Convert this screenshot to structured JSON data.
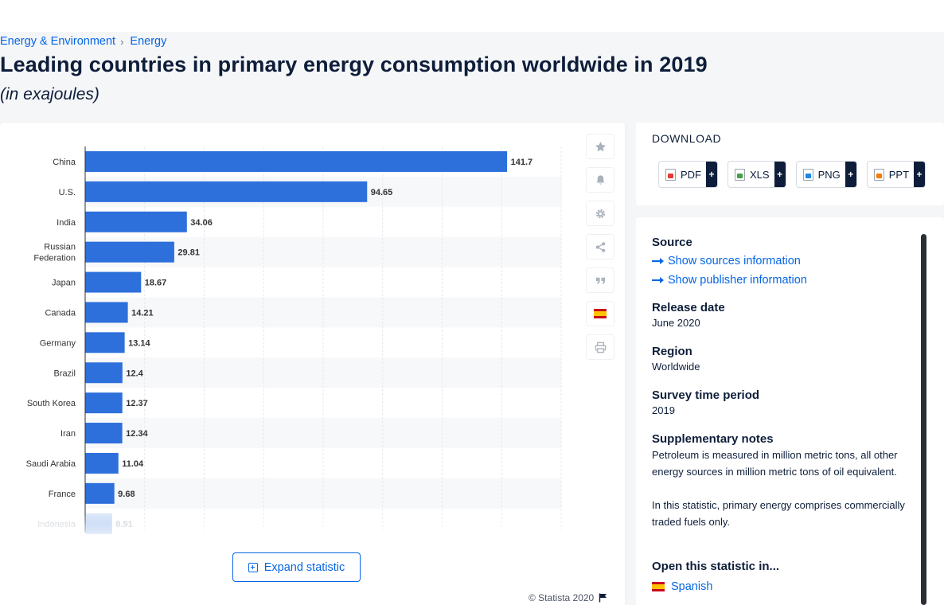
{
  "breadcrumb": {
    "level1": "Energy & Environment",
    "separator": "›",
    "level2": "Energy"
  },
  "page": {
    "title": "Leading countries in primary energy consumption worldwide in 2019",
    "subtitle": "(in exajoules)"
  },
  "chart_data": {
    "type": "bar",
    "orientation": "horizontal",
    "categories": [
      "China",
      "U.S.",
      "India",
      "Russian Federation",
      "Japan",
      "Canada",
      "Germany",
      "Brazil",
      "South Korea",
      "Iran",
      "Saudi Arabia",
      "France",
      "Indonesia"
    ],
    "values": [
      141.7,
      94.65,
      34.06,
      29.81,
      18.67,
      14.21,
      13.14,
      12.4,
      12.37,
      12.34,
      11.04,
      9.68,
      8.91
    ],
    "value_labels": [
      "141.7",
      "94.65",
      "34.06",
      "29.81",
      "18.67",
      "14.21",
      "13.14",
      "12.4",
      "12.37",
      "12.34",
      "11.04",
      "9.68",
      "8.91"
    ],
    "xlim": [
      0,
      160
    ],
    "grid": true,
    "bar_color": "#2d6fdb"
  },
  "tools": {
    "items": [
      {
        "name": "star-icon",
        "label": "Favorite"
      },
      {
        "name": "bell-icon",
        "label": "Notification"
      },
      {
        "name": "gear-icon",
        "label": "Settings"
      },
      {
        "name": "share-icon",
        "label": "Share"
      },
      {
        "name": "quote-icon",
        "label": "Cite"
      },
      {
        "name": "flag-spain-icon",
        "label": "Spanish"
      },
      {
        "name": "print-icon",
        "label": "Print"
      }
    ]
  },
  "expand": {
    "label": "Expand statistic"
  },
  "copyright": {
    "text": "© Statista 2020"
  },
  "download": {
    "title": "DOWNLOAD",
    "buttons": [
      {
        "label": "PDF",
        "plus": "+"
      },
      {
        "label": "XLS",
        "plus": "+"
      },
      {
        "label": "PNG",
        "plus": "+"
      },
      {
        "label": "PPT",
        "plus": "+"
      }
    ]
  },
  "info": {
    "source_heading": "Source",
    "show_sources": "Show sources information",
    "show_publisher": "Show publisher information",
    "release_heading": "Release date",
    "release_value": "June 2020",
    "region_heading": "Region",
    "region_value": "Worldwide",
    "survey_heading": "Survey time period",
    "survey_value": "2019",
    "notes_heading": "Supplementary notes",
    "notes_p1": "Petroleum is measured in million metric tons, all other energy sources in million metric tons of oil equivalent.",
    "notes_p2": "In this statistic, primary energy comprises commercially traded fuels only.",
    "open_heading": "Open this statistic in...",
    "open_spanish": "Spanish"
  }
}
